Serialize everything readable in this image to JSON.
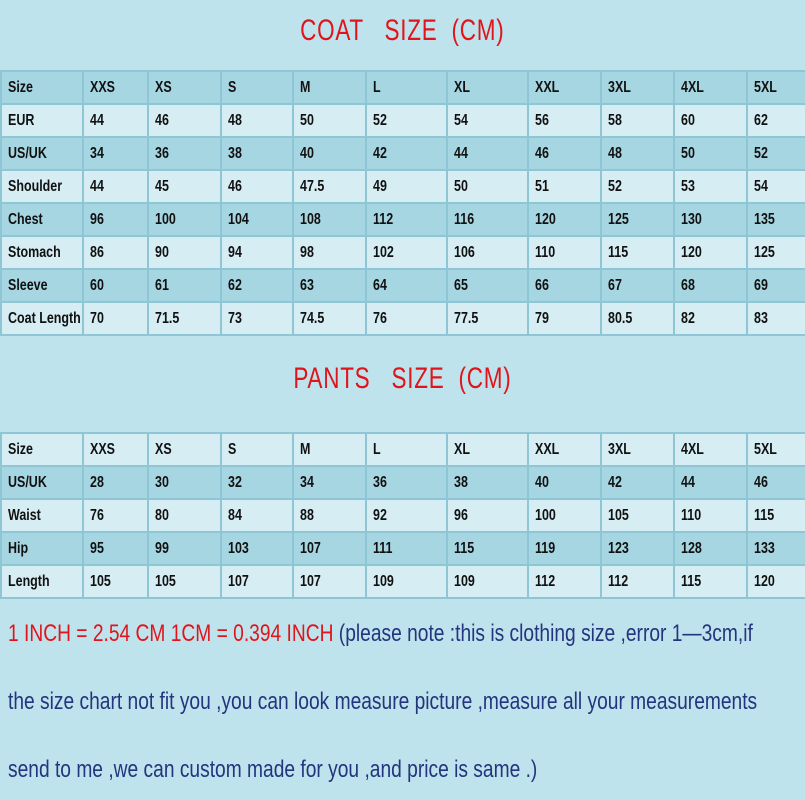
{
  "coat": {
    "title": "COAT   SIZE  (CM)",
    "rows": [
      [
        "Size",
        "XXS",
        "XS",
        "S",
        "M",
        "L",
        "XL",
        "XXL",
        "3XL",
        "4XL",
        "5XL"
      ],
      [
        "EUR",
        "44",
        "46",
        "48",
        "50",
        "52",
        "54",
        "56",
        "58",
        "60",
        "62"
      ],
      [
        "US/UK",
        "34",
        "36",
        "38",
        "40",
        "42",
        "44",
        "46",
        "48",
        "50",
        "52"
      ],
      [
        "Shoulder",
        "44",
        "45",
        "46",
        "47.5",
        "49",
        "50",
        "51",
        "52",
        "53",
        "54"
      ],
      [
        "Chest",
        "96",
        "100",
        "104",
        "108",
        "112",
        "116",
        "120",
        "125",
        "130",
        "135"
      ],
      [
        "Stomach",
        "86",
        "90",
        "94",
        "98",
        "102",
        "106",
        "110",
        "115",
        "120",
        "125"
      ],
      [
        "Sleeve",
        "60",
        "61",
        "62",
        "63",
        "64",
        "65",
        "66",
        "67",
        "68",
        "69"
      ],
      [
        "Coat Length",
        "70",
        "71.5",
        "73",
        "74.5",
        "76",
        "77.5",
        "79",
        "80.5",
        "82",
        "83"
      ]
    ]
  },
  "pants": {
    "title": "PANTS   SIZE  (CM)",
    "rows": [
      [
        "Size",
        "XXS",
        "XS",
        "S",
        "M",
        "L",
        "XL",
        "XXL",
        "3XL",
        "4XL",
        "5XL"
      ],
      [
        "US/UK",
        "28",
        "30",
        "32",
        "34",
        "36",
        "38",
        "40",
        "42",
        "44",
        "46"
      ],
      [
        "Waist",
        "76",
        "80",
        "84",
        "88",
        "92",
        "96",
        "100",
        "105",
        "110",
        "115"
      ],
      [
        "Hip",
        "95",
        "99",
        "103",
        "107",
        "111",
        "115",
        "119",
        "123",
        "128",
        "133"
      ],
      [
        "Length",
        "105",
        "105",
        "107",
        "107",
        "109",
        "109",
        "112",
        "112",
        "115",
        "120"
      ]
    ]
  },
  "notes": {
    "conversion": "1 INCH = 2.54 CM    1CM = 0.394 INCH",
    "line1": "  (please note :this is clothing size ,error 1—3cm,if",
    "line2": "the size chart not fit you ,you can look measure picture ,measure all your measurements",
    "line3": "send to me ,we can custom made for you ,and price is same .)"
  },
  "colors": {
    "title_red": "#e0151b",
    "note_blue": "#23357e",
    "row_dark": "#a7d6e3",
    "row_light": "#d5edf3"
  }
}
